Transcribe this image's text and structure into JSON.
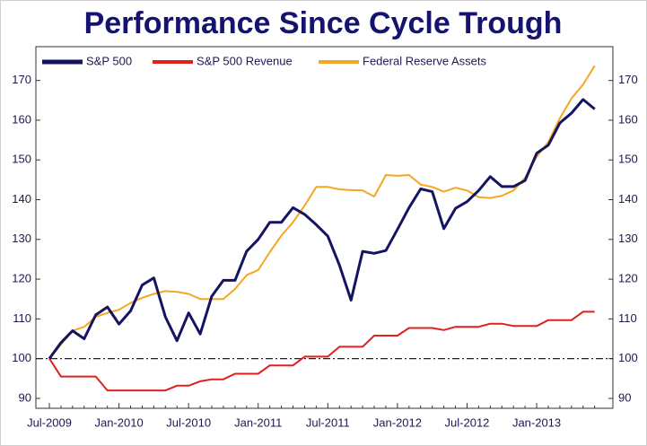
{
  "chart_data": {
    "type": "line",
    "title": "Performance Since Cycle Trough",
    "categories": [
      "Jul-2009",
      null,
      null,
      null,
      null,
      null,
      "Jan-2010",
      null,
      null,
      null,
      null,
      null,
      "Jul-2010",
      null,
      null,
      null,
      null,
      null,
      "Jan-2011",
      null,
      null,
      null,
      null,
      null,
      "Jul-2011",
      null,
      null,
      null,
      null,
      null,
      "Jan-2012",
      null,
      null,
      null,
      null,
      null,
      "Jul-2012",
      null,
      null,
      null,
      null,
      null,
      "Jan-2013",
      null,
      null,
      null,
      null,
      null
    ],
    "series": [
      {
        "name": "S&P 500",
        "color": "#141460",
        "width": 3,
        "values": [
          100,
          104,
          107,
          105,
          111,
          113,
          108.7,
          112,
          118.5,
          120.3,
          110.5,
          104.5,
          111.5,
          106.2,
          115.7,
          119.7,
          119.7,
          127,
          130,
          134.3,
          134.3,
          138,
          136.3,
          133.7,
          130.8,
          123.5,
          114.7,
          127,
          126.5,
          127.2,
          132.5,
          138,
          142.7,
          142,
          132.7,
          137.8,
          139.5,
          142.3,
          145.8,
          143.3,
          143.3,
          144.8,
          151.7,
          153.7,
          159.3,
          161.8,
          165.2,
          162.8
        ]
      },
      {
        "name": "S&P 500 Revenue",
        "color": "#e0201c",
        "width": 2,
        "values": [
          100,
          95.5,
          95.5,
          95.5,
          95.5,
          92,
          92,
          92,
          92,
          92,
          92,
          93.2,
          93.2,
          94.3,
          94.8,
          94.8,
          96.2,
          96.2,
          96.2,
          98.3,
          98.3,
          98.3,
          100.5,
          100.5,
          100.5,
          103,
          103,
          103,
          105.8,
          105.8,
          105.8,
          107.7,
          107.7,
          107.7,
          107.2,
          108,
          108,
          108,
          108.8,
          108.8,
          108.2,
          108.2,
          108.2,
          109.7,
          109.7,
          109.7,
          111.8,
          111.8
        ]
      },
      {
        "name": "Federal Reserve Assets",
        "color": "#f5a623",
        "width": 2,
        "values": [
          100,
          103.5,
          107,
          108,
          110.5,
          111.5,
          112.3,
          114,
          115.3,
          116.3,
          117,
          116.8,
          116.3,
          115,
          115,
          115,
          117.5,
          121,
          122.3,
          126.8,
          131,
          134.3,
          138.5,
          143.2,
          143.2,
          142.6,
          142.4,
          142.3,
          140.8,
          146.2,
          146,
          146.2,
          143.8,
          143.2,
          142,
          143,
          142.3,
          140.6,
          140.4,
          141,
          142.3,
          145.5,
          150.8,
          154.5,
          160.5,
          165.5,
          169,
          173.7
        ]
      }
    ],
    "ylim": [
      87.5,
      178.5
    ],
    "yticks": [
      90,
      100,
      110,
      120,
      130,
      140,
      150,
      160,
      170
    ],
    "y2lim": [
      87.5,
      178.5
    ],
    "y2ticks": [
      90,
      100,
      110,
      120,
      130,
      140,
      150,
      160,
      170
    ],
    "hline": 100,
    "legend": "top-left",
    "grid": false
  }
}
